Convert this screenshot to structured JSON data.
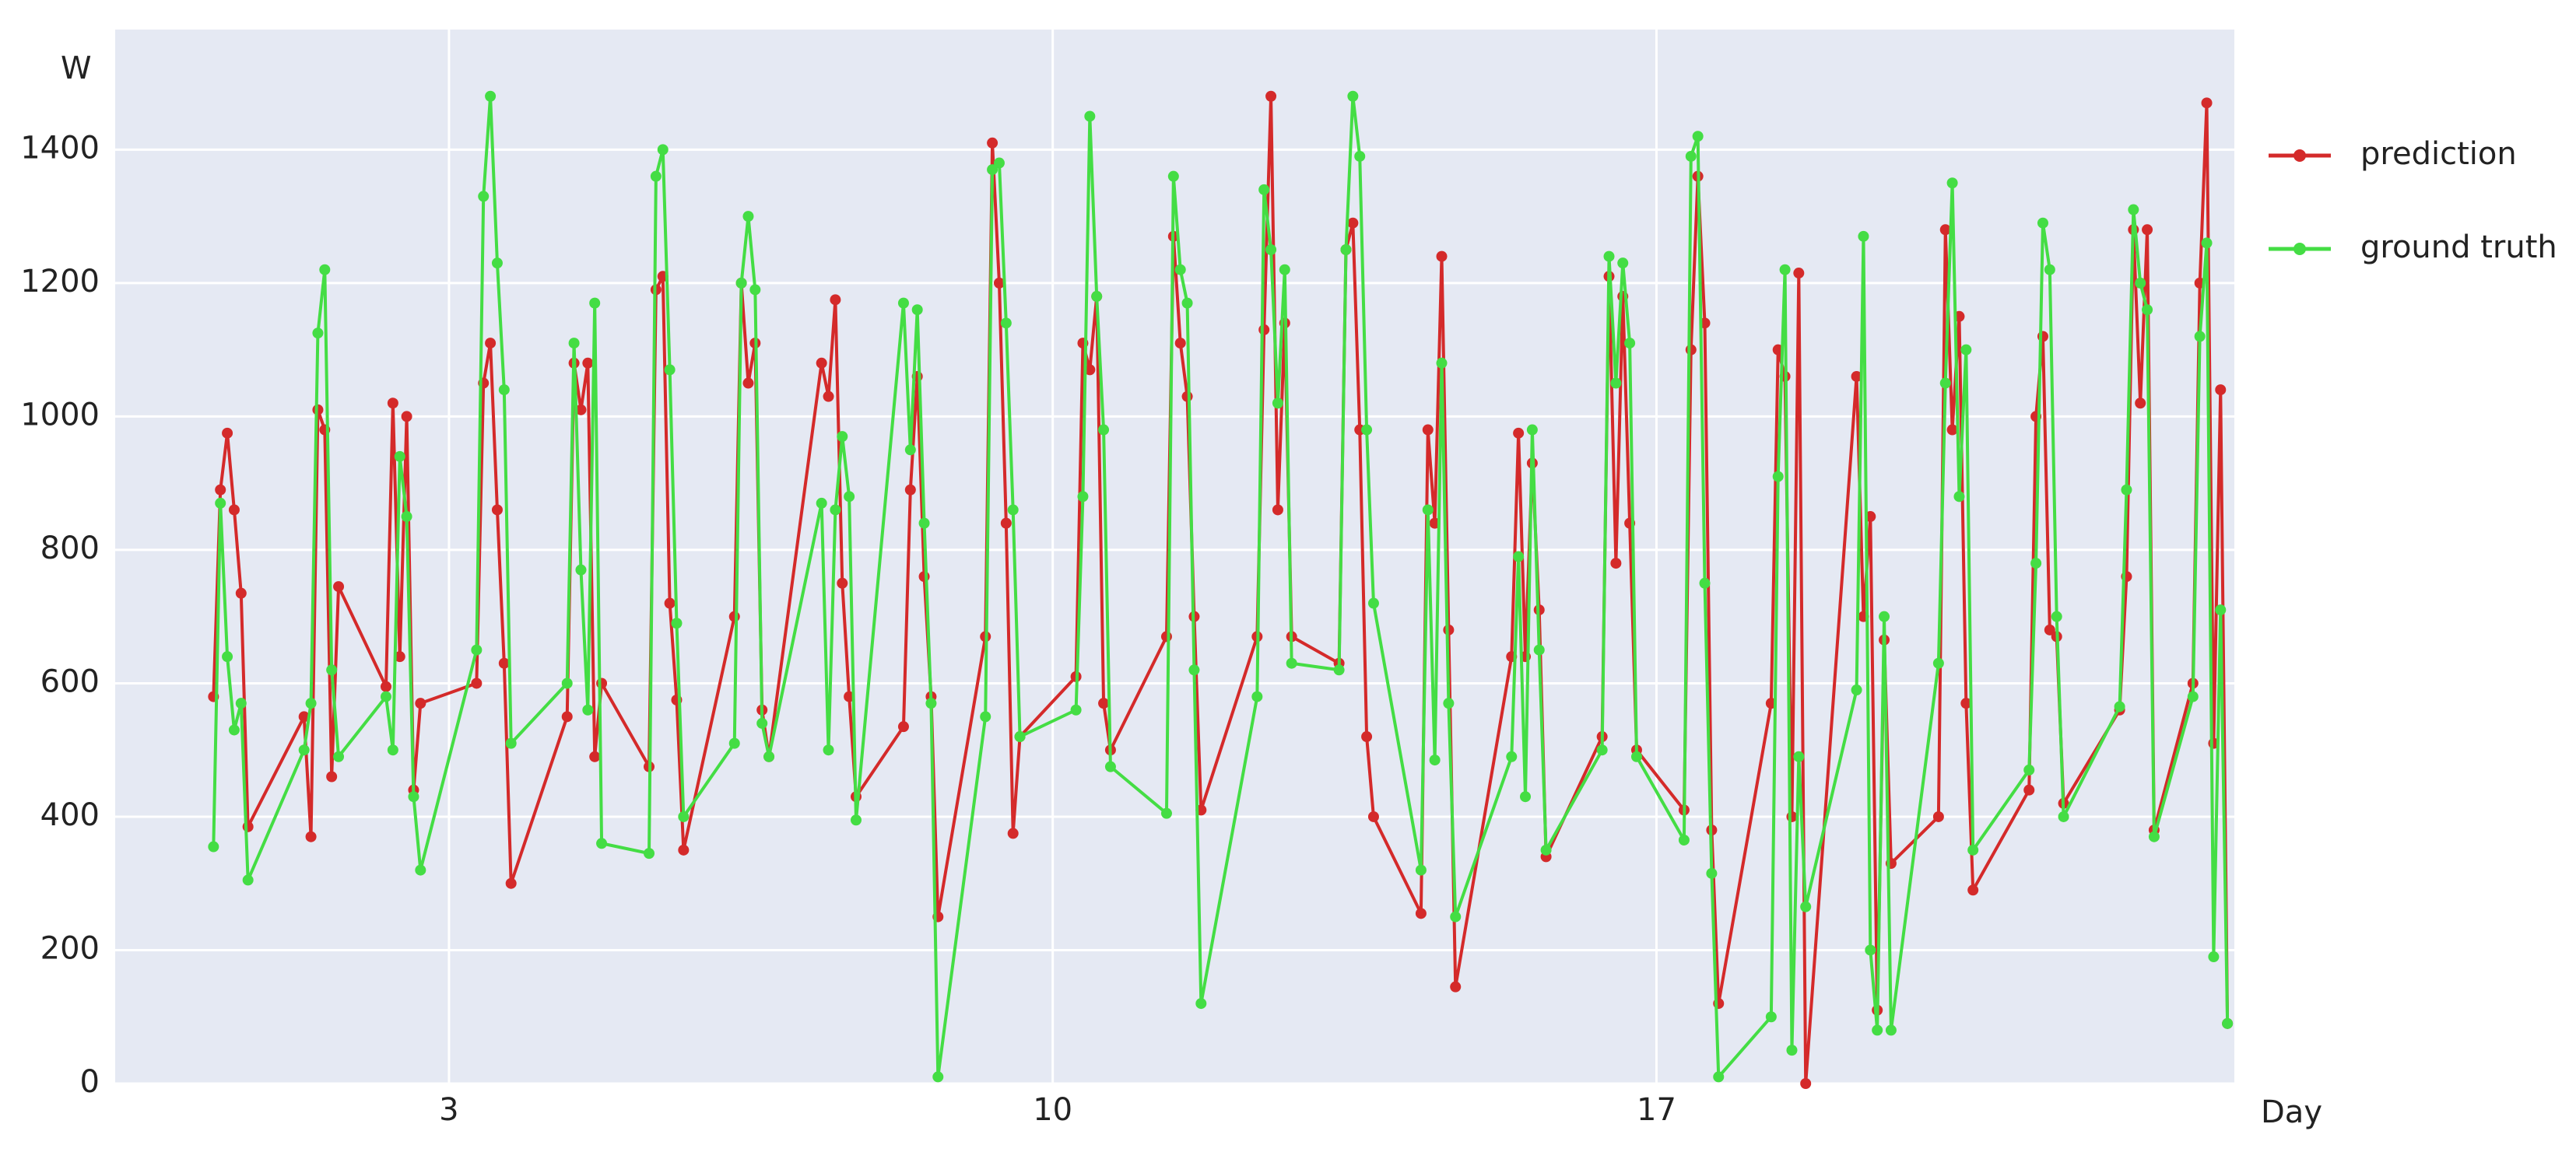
{
  "chart_data": {
    "type": "line",
    "y_label": "W",
    "x_label": "Day",
    "xlim": [
      -0.87,
      23.7
    ],
    "ylim": [
      0,
      1580
    ],
    "xticks": [
      3,
      10,
      17
    ],
    "yticks": [
      0,
      200,
      400,
      600,
      800,
      1000,
      1200,
      1400
    ],
    "grid": true,
    "legend": "right",
    "x": [
      0.27,
      0.35,
      0.43,
      0.51,
      0.59,
      0.67,
      1.32,
      1.4,
      1.48,
      1.56,
      1.64,
      1.72,
      2.27,
      2.35,
      2.43,
      2.51,
      2.59,
      2.67,
      3.32,
      3.4,
      3.48,
      3.56,
      3.64,
      3.72,
      4.37,
      4.45,
      4.53,
      4.61,
      4.69,
      4.77,
      5.32,
      5.4,
      5.48,
      5.56,
      5.64,
      5.72,
      6.31,
      6.39,
      6.47,
      6.55,
      6.63,
      6.71,
      7.32,
      7.4,
      7.48,
      7.56,
      7.64,
      7.72,
      8.27,
      8.35,
      8.43,
      8.51,
      8.59,
      8.67,
      9.22,
      9.3,
      9.38,
      9.46,
      9.54,
      9.62,
      10.27,
      10.35,
      10.43,
      10.51,
      10.59,
      10.67,
      11.32,
      11.4,
      11.48,
      11.56,
      11.64,
      11.72,
      12.37,
      12.45,
      12.53,
      12.61,
      12.69,
      12.77,
      13.32,
      13.4,
      13.48,
      13.56,
      13.64,
      13.72,
      14.27,
      14.35,
      14.43,
      14.51,
      14.59,
      14.67,
      15.32,
      15.4,
      15.48,
      15.56,
      15.64,
      15.72,
      16.37,
      16.45,
      16.53,
      16.61,
      16.69,
      16.77,
      17.32,
      17.4,
      17.48,
      17.56,
      17.64,
      17.72,
      18.33,
      18.41,
      18.49,
      18.57,
      18.65,
      18.73,
      19.32,
      19.4,
      19.48,
      19.56,
      19.64,
      19.72,
      20.27,
      20.35,
      20.43,
      20.51,
      20.59,
      20.67,
      21.32,
      21.4,
      21.48,
      21.56,
      21.64,
      21.72,
      22.37,
      22.45,
      22.53,
      22.61,
      22.69,
      22.77,
      23.22,
      23.3,
      23.38,
      23.46,
      23.54,
      23.62
    ],
    "series": [
      {
        "name": "prediction",
        "color": "#d42a2a",
        "values": [
          580,
          890,
          975,
          860,
          735,
          385,
          550,
          370,
          1010,
          980,
          460,
          745,
          595,
          1020,
          640,
          1000,
          440,
          570,
          600,
          1050,
          1110,
          860,
          630,
          300,
          550,
          1080,
          1010,
          1080,
          490,
          600,
          475,
          1190,
          1210,
          720,
          575,
          350,
          700,
          1200,
          1050,
          1110,
          560,
          490,
          1080,
          1030,
          1175,
          750,
          580,
          430,
          535,
          890,
          1060,
          760,
          580,
          250,
          670,
          1410,
          1200,
          840,
          375,
          520,
          610,
          1110,
          1070,
          1180,
          570,
          500,
          670,
          1270,
          1110,
          1030,
          700,
          410,
          670,
          1130,
          1480,
          860,
          1140,
          670,
          630,
          1250,
          1290,
          980,
          520,
          400,
          255,
          980,
          840,
          1240,
          680,
          145,
          640,
          975,
          640,
          930,
          710,
          340,
          520,
          1210,
          780,
          1180,
          840,
          500,
          410,
          1100,
          1360,
          1140,
          380,
          120,
          570,
          1100,
          1060,
          400,
          1215,
          0,
          1060,
          700,
          850,
          110,
          665,
          330,
          400,
          1280,
          980,
          1150,
          570,
          290,
          440,
          1000,
          1120,
          680,
          670,
          420,
          560,
          760,
          1280,
          1020,
          1280,
          380,
          600,
          1200,
          1470,
          510,
          1040,
          90
        ]
      },
      {
        "name": "ground truth",
        "color": "#44dd44",
        "values": [
          355,
          870,
          640,
          530,
          570,
          305,
          500,
          570,
          1125,
          1220,
          620,
          490,
          580,
          500,
          940,
          850,
          430,
          320,
          650,
          1330,
          1480,
          1230,
          1040,
          510,
          600,
          1110,
          770,
          560,
          1170,
          360,
          345,
          1360,
          1400,
          1070,
          690,
          400,
          510,
          1200,
          1300,
          1190,
          540,
          490,
          870,
          500,
          860,
          970,
          880,
          395,
          1170,
          950,
          1160,
          840,
          570,
          10,
          550,
          1370,
          1380,
          1140,
          860,
          520,
          560,
          880,
          1450,
          1180,
          980,
          475,
          405,
          1360,
          1220,
          1170,
          620,
          120,
          580,
          1340,
          1250,
          1020,
          1220,
          630,
          620,
          1250,
          1480,
          1390,
          980,
          720,
          320,
          860,
          485,
          1080,
          570,
          250,
          490,
          790,
          430,
          980,
          650,
          350,
          500,
          1240,
          1050,
          1230,
          1110,
          490,
          365,
          1390,
          1420,
          750,
          315,
          10,
          100,
          910,
          1220,
          50,
          490,
          265,
          590,
          1270,
          200,
          80,
          700,
          80,
          630,
          1050,
          1350,
          880,
          1100,
          350,
          470,
          780,
          1290,
          1220,
          700,
          400,
          565,
          890,
          1310,
          1200,
          1160,
          370,
          580,
          1120,
          1260,
          190,
          710,
          90
        ]
      }
    ]
  }
}
